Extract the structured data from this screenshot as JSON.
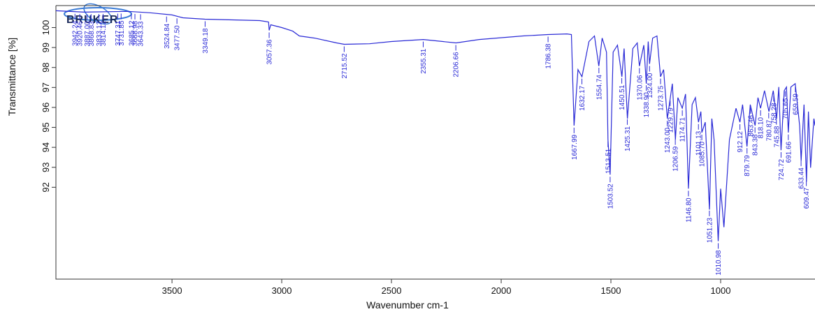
{
  "logo": "BRUKER",
  "chart_data": {
    "type": "line",
    "xlabel": "Wavenumber cm-1",
    "ylabel": "Transmittance [%]",
    "xlim": [
      4029,
      570
    ],
    "ylim": [
      87.4,
      101.1
    ],
    "xticks": [
      3500,
      3000,
      2500,
      2000,
      1500,
      1000
    ],
    "yticks": [
      92,
      93,
      94,
      95,
      96,
      97,
      98,
      99,
      100
    ],
    "color": "#2a2ad6",
    "series": [
      {
        "x": [
          4029,
          3900,
          3700,
          3600,
          3500,
          3450,
          3350,
          3100,
          3060,
          3057.36,
          3050,
          3000,
          2950,
          2920,
          2850,
          2750,
          2715,
          2600,
          2500,
          2355,
          2206,
          2100,
          1900,
          1786,
          1700,
          1680,
          1668,
          1650,
          1632,
          1600,
          1575,
          1555,
          1540,
          1520,
          1513.5,
          1503.5,
          1490,
          1470,
          1450,
          1440,
          1425,
          1400,
          1380,
          1370,
          1350,
          1339,
          1330,
          1324,
          1310,
          1290,
          1274,
          1260,
          1243,
          1220,
          1206,
          1195,
          1174.7,
          1160,
          1146.8,
          1130,
          1115,
          1101,
          1090,
          1085.7,
          1070,
          1051,
          1040,
          1030,
          1011,
          1000,
          985,
          960,
          930,
          912,
          900,
          880,
          865,
          843,
          830,
          818,
          800,
          780,
          760,
          745,
          735,
          724.7,
          710,
          700,
          691.7,
          680,
          660,
          640,
          633,
          620,
          609,
          600,
          590,
          575,
          570
        ],
        "values": [
          100.84,
          100.77,
          100.81,
          100.74,
          100.63,
          100.49,
          100.42,
          100.35,
          100.28,
          99.86,
          100.14,
          100,
          99.82,
          99.58,
          99.47,
          99.23,
          99.16,
          99.19,
          99.3,
          99.4,
          99.23,
          99.4,
          99.58,
          99.65,
          99.68,
          99.65,
          95.09,
          97.89,
          97.54,
          99.3,
          99.58,
          98.07,
          99.47,
          98.77,
          94.39,
          92.63,
          98.77,
          99.12,
          97.54,
          98.95,
          95.44,
          98.95,
          99.23,
          98.07,
          99.12,
          97.19,
          99.3,
          98.18,
          99.47,
          99.58,
          97.54,
          97.89,
          95.44,
          97.19,
          94.39,
          96.49,
          95.96,
          96.67,
          91.93,
          96.14,
          96.49,
          95.26,
          95.79,
          94.74,
          95.26,
          90.88,
          95.44,
          94.39,
          89.3,
          91.93,
          90,
          94.39,
          95.96,
          95.26,
          96.14,
          94.04,
          96.14,
          95.09,
          96.49,
          95.96,
          96.84,
          95.79,
          96.84,
          95.44,
          97.02,
          93.86,
          96.84,
          97.02,
          94.74,
          97.02,
          97.19,
          95.09,
          93.33,
          96.14,
          92.28,
          95.79,
          92.98,
          95.44,
          95.09
        ]
      }
    ],
    "peaks": [
      3942.24,
      3920.46,
      {
        "value": 3887,
        "label": "3887.00"
      },
      3868.83,
      3833.12,
      3814.12,
      3747.31,
      3731.85,
      3685.12,
      3668.98,
      3643.33,
      3524.84,
      {
        "value": 3477.5,
        "label": "3477.50"
      },
      3349.18,
      3057.36,
      2715.52,
      2355.31,
      2206.66,
      1786.38,
      1667.99,
      1632.17,
      1554.74,
      1513.51,
      1503.52,
      1450.51,
      1425.31,
      1370.06,
      {
        "value": 1338.9,
        "label": "1338.90"
      },
      {
        "value": 1324,
        "label": "1324.00"
      },
      1273.75,
      {
        "value": 1243,
        "label": "1243.00"
      },
      1229.79,
      1206.59,
      1174.71,
      {
        "value": 1146.8,
        "label": "1146.80"
      },
      1101.13,
      {
        "value": 1085.7,
        "label": "1085.70"
      },
      1051.23,
      1010.98,
      912.12,
      879.79,
      863.46,
      843.38,
      {
        "value": 818.1,
        "label": "818.10"
      },
      780.87,
      758.28,
      745.88,
      724.72,
      705.65,
      691.66,
      659.59,
      633.44,
      609.47
    ]
  }
}
